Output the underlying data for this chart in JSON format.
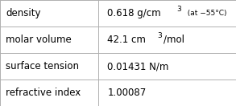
{
  "rows": [
    {
      "label": "density",
      "parts": [
        {
          "text": "0.618 g/cm",
          "super": false,
          "size_key": "value"
        },
        {
          "text": "3",
          "super": true,
          "size_key": "small"
        },
        {
          "text": "  (at −55°C)",
          "super": false,
          "size_key": "small"
        }
      ]
    },
    {
      "label": "molar volume",
      "parts": [
        {
          "text": "42.1 cm",
          "super": false,
          "size_key": "value"
        },
        {
          "text": "3",
          "super": true,
          "size_key": "small"
        },
        {
          "text": "/mol",
          "super": false,
          "size_key": "value"
        }
      ]
    },
    {
      "label": "surface tension",
      "parts": [
        {
          "text": "0.01431 N/m",
          "super": false,
          "size_key": "value"
        }
      ]
    },
    {
      "label": "refractive index",
      "parts": [
        {
          "text": "1.00087",
          "super": false,
          "size_key": "value"
        }
      ]
    }
  ],
  "bg_color": "#ffffff",
  "border_color": "#b0b0b0",
  "text_color": "#000000",
  "label_fontsize": 8.5,
  "value_fontsize": 8.5,
  "small_fontsize": 6.5,
  "col_split": 0.415
}
